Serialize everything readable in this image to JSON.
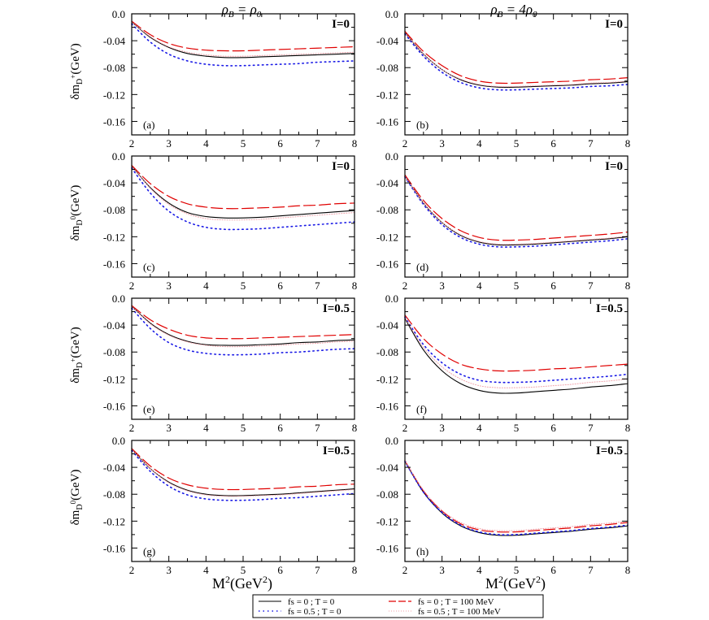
{
  "figure": {
    "column_titles": [
      "ρ_B = ρ_0",
      "ρ_B = 4ρ_0"
    ],
    "x_axis_label": "M²(GeV²)",
    "row_y_labels": [
      "δm_D+(GeV)",
      "δm_D0(GeV)",
      "δm_D+(GeV)",
      "δm_D0(GeV)"
    ]
  },
  "legend": {
    "entries": [
      {
        "label": "fs = 0 ; T = 0",
        "color": "#000000",
        "dash": "solid"
      },
      {
        "label": "fs = 0 ; T = 100 MeV",
        "color": "#e00000",
        "dash": "long-dash"
      },
      {
        "label": "fs = 0.5 ; T = 0",
        "color": "#1a1ae6",
        "dash": "dotted"
      },
      {
        "label": "fs = 0.5 ; T = 100 MeV",
        "color": "#f0a0a8",
        "dash": "dot"
      }
    ]
  },
  "chart_data": [
    {
      "type": "line",
      "panel": "(a)",
      "isospin": "I=0",
      "column_title": "ρ_B = ρ_0",
      "ylabel": "δm_D+(GeV)",
      "xlabel": "",
      "xlim": [
        2,
        8
      ],
      "ylim": [
        -0.18,
        0.0
      ],
      "x_ticks": [
        2,
        3,
        4,
        5,
        6,
        7,
        8
      ],
      "y_ticks": [
        "0.0",
        "-0.04",
        "-0.08",
        "-0.12",
        "-0.16"
      ],
      "x": [
        2,
        2.5,
        3,
        3.5,
        4,
        4.5,
        5,
        5.5,
        6,
        6.5,
        7,
        7.5,
        8
      ],
      "series": [
        {
          "values": [
            -0.012,
            -0.035,
            -0.05,
            -0.059,
            -0.063,
            -0.065,
            -0.065,
            -0.064,
            -0.063,
            -0.062,
            -0.061,
            -0.06,
            -0.059
          ]
        },
        {
          "values": [
            -0.011,
            -0.031,
            -0.044,
            -0.051,
            -0.054,
            -0.055,
            -0.055,
            -0.054,
            -0.053,
            -0.052,
            -0.051,
            -0.05,
            -0.049
          ]
        },
        {
          "values": [
            -0.015,
            -0.042,
            -0.06,
            -0.07,
            -0.075,
            -0.077,
            -0.077,
            -0.076,
            -0.075,
            -0.074,
            -0.072,
            -0.071,
            -0.07
          ]
        },
        {
          "values": [
            -0.012,
            -0.034,
            -0.049,
            -0.057,
            -0.061,
            -0.063,
            -0.063,
            -0.062,
            -0.061,
            -0.06,
            -0.059,
            -0.058,
            -0.057
          ]
        }
      ]
    },
    {
      "type": "line",
      "panel": "(b)",
      "isospin": "I=0",
      "column_title": "ρ_B = 4ρ_0",
      "ylabel": "",
      "xlabel": "",
      "xlim": [
        2,
        8
      ],
      "ylim": [
        -0.18,
        0.0
      ],
      "x_ticks": [
        2,
        3,
        4,
        5,
        6,
        7,
        8
      ],
      "y_ticks": [
        "0.0",
        "-0.04",
        "-0.08",
        "-0.12",
        "-0.16"
      ],
      "x": [
        2,
        2.5,
        3,
        3.5,
        4,
        4.5,
        5,
        5.5,
        6,
        6.5,
        7,
        7.5,
        8
      ],
      "series": [
        {
          "values": [
            -0.028,
            -0.06,
            -0.083,
            -0.098,
            -0.106,
            -0.109,
            -0.109,
            -0.108,
            -0.107,
            -0.106,
            -0.104,
            -0.103,
            -0.101
          ]
        },
        {
          "values": [
            -0.026,
            -0.056,
            -0.077,
            -0.092,
            -0.1,
            -0.103,
            -0.103,
            -0.102,
            -0.101,
            -0.1,
            -0.098,
            -0.097,
            -0.095
          ]
        },
        {
          "values": [
            -0.03,
            -0.063,
            -0.087,
            -0.102,
            -0.11,
            -0.113,
            -0.113,
            -0.112,
            -0.111,
            -0.11,
            -0.108,
            -0.107,
            -0.105
          ]
        },
        {
          "values": [
            -0.028,
            -0.06,
            -0.083,
            -0.097,
            -0.105,
            -0.108,
            -0.108,
            -0.107,
            -0.106,
            -0.105,
            -0.103,
            -0.102,
            -0.1
          ]
        }
      ]
    },
    {
      "type": "line",
      "panel": "(c)",
      "isospin": "I=0",
      "column_title": "",
      "ylabel": "δm_D0(GeV)",
      "xlabel": "",
      "xlim": [
        2,
        8
      ],
      "ylim": [
        -0.18,
        0.0
      ],
      "x_ticks": [
        2,
        3,
        4,
        5,
        6,
        7,
        8
      ],
      "y_ticks": [
        "0.0",
        "-0.04",
        "-0.08",
        "-0.12",
        "-0.16"
      ],
      "x": [
        2,
        2.5,
        3,
        3.5,
        4,
        4.5,
        5,
        5.5,
        6,
        6.5,
        7,
        7.5,
        8
      ],
      "series": [
        {
          "values": [
            -0.015,
            -0.047,
            -0.07,
            -0.084,
            -0.09,
            -0.092,
            -0.092,
            -0.091,
            -0.089,
            -0.087,
            -0.085,
            -0.083,
            -0.081
          ]
        },
        {
          "values": [
            -0.014,
            -0.041,
            -0.06,
            -0.071,
            -0.076,
            -0.078,
            -0.078,
            -0.077,
            -0.076,
            -0.074,
            -0.073,
            -0.071,
            -0.07
          ]
        },
        {
          "values": [
            -0.018,
            -0.055,
            -0.082,
            -0.098,
            -0.106,
            -0.109,
            -0.109,
            -0.108,
            -0.106,
            -0.104,
            -0.102,
            -0.1,
            -0.098
          ]
        },
        {
          "values": [
            -0.015,
            -0.048,
            -0.072,
            -0.086,
            -0.093,
            -0.095,
            -0.095,
            -0.094,
            -0.092,
            -0.09,
            -0.088,
            -0.086,
            -0.084
          ]
        }
      ]
    },
    {
      "type": "line",
      "panel": "(d)",
      "isospin": "I=0",
      "column_title": "",
      "ylabel": "",
      "xlabel": "",
      "xlim": [
        2,
        8
      ],
      "ylim": [
        -0.18,
        0.0
      ],
      "x_ticks": [
        2,
        3,
        4,
        5,
        6,
        7,
        8
      ],
      "y_ticks": [
        "0.0",
        "-0.04",
        "-0.08",
        "-0.12",
        "-0.16"
      ],
      "x": [
        2,
        2.5,
        3,
        3.5,
        4,
        4.5,
        5,
        5.5,
        6,
        6.5,
        7,
        7.5,
        8
      ],
      "series": [
        {
          "values": [
            -0.03,
            -0.07,
            -0.099,
            -0.118,
            -0.128,
            -0.132,
            -0.132,
            -0.131,
            -0.129,
            -0.127,
            -0.125,
            -0.123,
            -0.12
          ]
        },
        {
          "values": [
            -0.028,
            -0.066,
            -0.093,
            -0.111,
            -0.121,
            -0.125,
            -0.125,
            -0.124,
            -0.122,
            -0.12,
            -0.118,
            -0.116,
            -0.113
          ]
        },
        {
          "values": [
            -0.031,
            -0.072,
            -0.102,
            -0.121,
            -0.131,
            -0.135,
            -0.135,
            -0.134,
            -0.132,
            -0.13,
            -0.128,
            -0.126,
            -0.123
          ]
        },
        {
          "values": [
            -0.03,
            -0.07,
            -0.099,
            -0.117,
            -0.127,
            -0.131,
            -0.131,
            -0.13,
            -0.128,
            -0.126,
            -0.124,
            -0.122,
            -0.119
          ]
        }
      ]
    },
    {
      "type": "line",
      "panel": "(e)",
      "isospin": "I=0.5",
      "column_title": "",
      "ylabel": "δm_D+(GeV)",
      "xlabel": "",
      "xlim": [
        2,
        8
      ],
      "ylim": [
        -0.18,
        0.0
      ],
      "x_ticks": [
        2,
        3,
        4,
        5,
        6,
        7,
        8
      ],
      "y_ticks": [
        "0.0",
        "-0.04",
        "-0.08",
        "-0.12",
        "-0.16"
      ],
      "x": [
        2,
        2.5,
        3,
        3.5,
        4,
        4.5,
        5,
        5.5,
        6,
        6.5,
        7,
        7.5,
        8
      ],
      "series": [
        {
          "values": [
            -0.012,
            -0.037,
            -0.054,
            -0.064,
            -0.069,
            -0.07,
            -0.07,
            -0.069,
            -0.068,
            -0.066,
            -0.065,
            -0.063,
            -0.062
          ]
        },
        {
          "values": [
            -0.011,
            -0.032,
            -0.046,
            -0.055,
            -0.059,
            -0.06,
            -0.06,
            -0.059,
            -0.058,
            -0.057,
            -0.056,
            -0.055,
            -0.054
          ]
        },
        {
          "values": [
            -0.015,
            -0.045,
            -0.066,
            -0.077,
            -0.082,
            -0.084,
            -0.084,
            -0.083,
            -0.081,
            -0.08,
            -0.078,
            -0.076,
            -0.075
          ]
        },
        {
          "values": [
            -0.012,
            -0.038,
            -0.055,
            -0.065,
            -0.07,
            -0.072,
            -0.072,
            -0.071,
            -0.07,
            -0.068,
            -0.067,
            -0.065,
            -0.064
          ]
        }
      ]
    },
    {
      "type": "line",
      "panel": "(f)",
      "isospin": "I=0.5",
      "column_title": "",
      "ylabel": "",
      "xlabel": "",
      "xlim": [
        2,
        8
      ],
      "ylim": [
        -0.18,
        0.0
      ],
      "x_ticks": [
        2,
        3,
        4,
        5,
        6,
        7,
        8
      ],
      "y_ticks": [
        "0.0",
        "-0.04",
        "-0.08",
        "-0.12",
        "-0.16"
      ],
      "x": [
        2,
        2.5,
        3,
        3.5,
        4,
        4.5,
        5,
        5.5,
        6,
        6.5,
        7,
        7.5,
        8
      ],
      "series": [
        {
          "values": [
            -0.03,
            -0.077,
            -0.108,
            -0.127,
            -0.137,
            -0.141,
            -0.141,
            -0.139,
            -0.137,
            -0.135,
            -0.132,
            -0.13,
            -0.127
          ]
        },
        {
          "values": [
            -0.025,
            -0.06,
            -0.083,
            -0.098,
            -0.105,
            -0.108,
            -0.108,
            -0.107,
            -0.105,
            -0.104,
            -0.102,
            -0.1,
            -0.098
          ]
        },
        {
          "values": [
            -0.028,
            -0.069,
            -0.096,
            -0.113,
            -0.122,
            -0.125,
            -0.125,
            -0.124,
            -0.122,
            -0.12,
            -0.118,
            -0.116,
            -0.113
          ]
        },
        {
          "values": [
            -0.029,
            -0.073,
            -0.102,
            -0.12,
            -0.13,
            -0.133,
            -0.133,
            -0.132,
            -0.13,
            -0.128,
            -0.125,
            -0.123,
            -0.12
          ]
        }
      ]
    },
    {
      "type": "line",
      "panel": "(g)",
      "isospin": "I=0.5",
      "column_title": "",
      "ylabel": "δm_D0(GeV)",
      "xlabel": "M²(GeV²)",
      "xlim": [
        2,
        8
      ],
      "ylim": [
        -0.18,
        0.0
      ],
      "x_ticks": [
        2,
        3,
        4,
        5,
        6,
        7,
        8
      ],
      "y_ticks": [
        "0.0",
        "-0.04",
        "-0.08",
        "-0.12",
        "-0.16"
      ],
      "x": [
        2,
        2.5,
        3,
        3.5,
        4,
        4.5,
        5,
        5.5,
        6,
        6.5,
        7,
        7.5,
        8
      ],
      "series": [
        {
          "values": [
            -0.013,
            -0.042,
            -0.062,
            -0.074,
            -0.08,
            -0.082,
            -0.082,
            -0.081,
            -0.08,
            -0.078,
            -0.076,
            -0.074,
            -0.072
          ]
        },
        {
          "values": [
            -0.012,
            -0.038,
            -0.056,
            -0.066,
            -0.071,
            -0.073,
            -0.073,
            -0.072,
            -0.071,
            -0.069,
            -0.068,
            -0.066,
            -0.065
          ]
        },
        {
          "values": [
            -0.015,
            -0.046,
            -0.068,
            -0.081,
            -0.087,
            -0.089,
            -0.089,
            -0.088,
            -0.086,
            -0.085,
            -0.083,
            -0.081,
            -0.079
          ]
        },
        {
          "values": [
            -0.013,
            -0.042,
            -0.063,
            -0.075,
            -0.081,
            -0.083,
            -0.083,
            -0.082,
            -0.081,
            -0.079,
            -0.077,
            -0.075,
            -0.073
          ]
        }
      ]
    },
    {
      "type": "line",
      "panel": "(h)",
      "isospin": "I=0.5",
      "column_title": "",
      "ylabel": "",
      "xlabel": "M²(GeV²)",
      "xlim": [
        2,
        8
      ],
      "ylim": [
        -0.18,
        0.0
      ],
      "x_ticks": [
        2,
        3,
        4,
        5,
        6,
        7,
        8
      ],
      "y_ticks": [
        "0.0",
        "-0.04",
        "-0.08",
        "-0.12",
        "-0.16"
      ],
      "x": [
        2,
        2.5,
        3,
        3.5,
        4,
        4.5,
        5,
        5.5,
        6,
        6.5,
        7,
        7.5,
        8
      ],
      "series": [
        {
          "values": [
            -0.031,
            -0.077,
            -0.108,
            -0.127,
            -0.137,
            -0.141,
            -0.141,
            -0.139,
            -0.137,
            -0.135,
            -0.132,
            -0.13,
            -0.127
          ]
        },
        {
          "values": [
            -0.03,
            -0.075,
            -0.105,
            -0.124,
            -0.133,
            -0.136,
            -0.136,
            -0.134,
            -0.132,
            -0.13,
            -0.127,
            -0.125,
            -0.122
          ]
        },
        {
          "values": [
            -0.031,
            -0.077,
            -0.107,
            -0.126,
            -0.136,
            -0.14,
            -0.14,
            -0.138,
            -0.136,
            -0.134,
            -0.131,
            -0.129,
            -0.126
          ]
        },
        {
          "values": [
            -0.03,
            -0.074,
            -0.104,
            -0.122,
            -0.131,
            -0.134,
            -0.134,
            -0.132,
            -0.13,
            -0.128,
            -0.125,
            -0.123,
            -0.12
          ]
        }
      ]
    }
  ]
}
